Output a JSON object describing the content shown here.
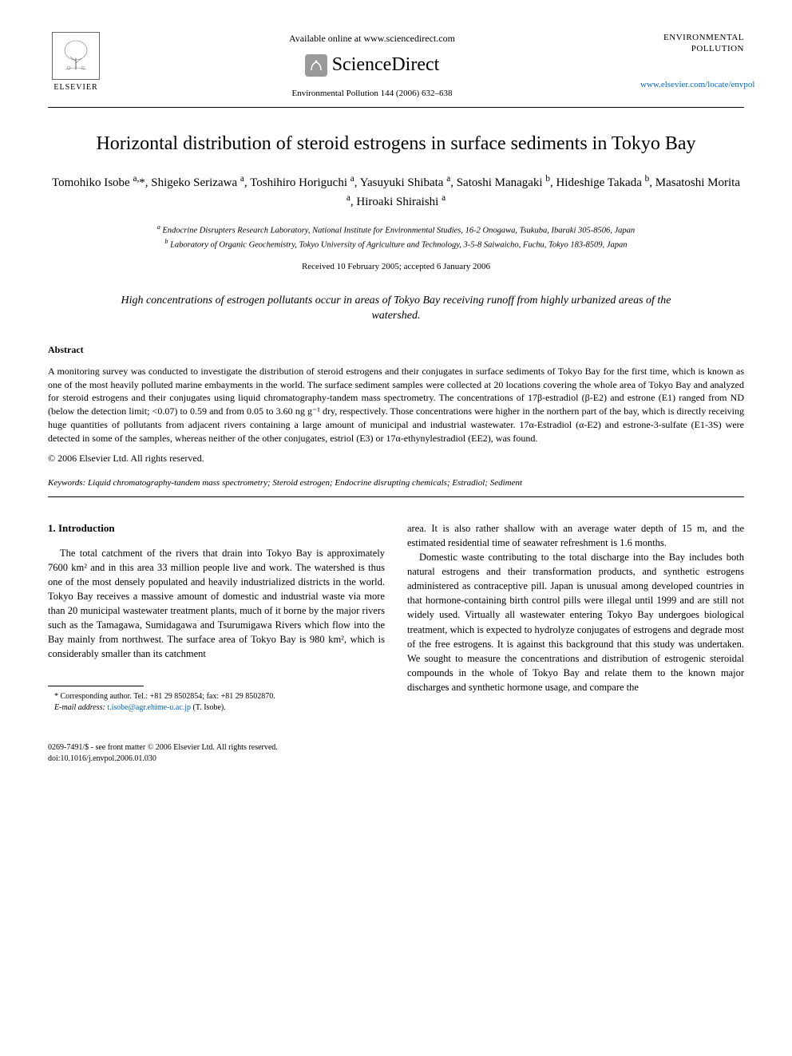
{
  "header": {
    "available_online": "Available online at www.sciencedirect.com",
    "sciencedirect": "ScienceDirect",
    "journal_ref": "Environmental Pollution 144 (2006) 632–638",
    "publisher": "ELSEVIER",
    "journal_name_1": "ENVIRONMENTAL",
    "journal_name_2": "POLLUTION",
    "journal_url": "www.elsevier.com/locate/envpol"
  },
  "title": "Horizontal distribution of steroid estrogens in surface sediments in Tokyo Bay",
  "authors_html": "Tomohiko Isobe <sup>a,</sup>*, Shigeko Serizawa <sup>a</sup>, Toshihiro Horiguchi <sup>a</sup>, Yasuyuki Shibata <sup>a</sup>, Satoshi Managaki <sup>b</sup>, Hideshige Takada <sup>b</sup>, Masatoshi Morita <sup>a</sup>, Hiroaki Shiraishi <sup>a</sup>",
  "affiliations": {
    "a": "Endocrine Disrupters Research Laboratory, National Institute for Environmental Studies, 16-2 Onogawa, Tsukuba, Ibaraki 305-8506, Japan",
    "b": "Laboratory of Organic Geochemistry, Tokyo University of Agriculture and Technology, 3-5-8 Saiwaicho, Fuchu, Tokyo 183-8509, Japan"
  },
  "dates": "Received 10 February 2005; accepted 6 January 2006",
  "capsule": "High concentrations of estrogen pollutants occur in areas of Tokyo Bay receiving runoff from highly urbanized areas of the watershed.",
  "abstract": {
    "heading": "Abstract",
    "text": "A monitoring survey was conducted to investigate the distribution of steroid estrogens and their conjugates in surface sediments of Tokyo Bay for the first time, which is known as one of the most heavily polluted marine embayments in the world. The surface sediment samples were collected at 20 locations covering the whole area of Tokyo Bay and analyzed for steroid estrogens and their conjugates using liquid chromatography-tandem mass spectrometry. The concentrations of 17β-estradiol (β-E2) and estrone (E1) ranged from ND (below the detection limit; <0.07) to 0.59 and from 0.05 to 3.60 ng g⁻¹ dry, respectively. Those concentrations were higher in the northern part of the bay, which is directly receiving huge quantities of pollutants from adjacent rivers containing a large amount of municipal and industrial wastewater. 17α-Estradiol (α-E2) and estrone-3-sulfate (E1-3S) were detected in some of the samples, whereas neither of the other conjugates, estriol (E3) or 17α-ethynylestradiol (EE2), was found.",
    "copyright": "© 2006 Elsevier Ltd. All rights reserved."
  },
  "keywords": {
    "label": "Keywords:",
    "text": "Liquid chromatography-tandem mass spectrometry; Steroid estrogen; Endocrine disrupting chemicals; Estradiol; Sediment"
  },
  "introduction": {
    "heading": "1. Introduction",
    "col1_p1": "The total catchment of the rivers that drain into Tokyo Bay is approximately 7600 km² and in this area 33 million people live and work. The watershed is thus one of the most densely populated and heavily industrialized districts in the world. Tokyo Bay receives a massive amount of domestic and industrial waste via more than 20 municipal wastewater treatment plants, much of it borne by the major rivers such as the Tamagawa, Sumidagawa and Tsurumigawa Rivers which flow into the Bay mainly from northwest. The surface area of Tokyo Bay is 980 km², which is considerably smaller than its catchment",
    "col2_p1": "area. It is also rather shallow with an average water depth of 15 m, and the estimated residential time of seawater refreshment is 1.6 months.",
    "col2_p2": "Domestic waste contributing to the total discharge into the Bay includes both natural estrogens and their transformation products, and synthetic estrogens administered as contraceptive pill. Japan is unusual among developed countries in that hormone-containing birth control pills were illegal until 1999 and are still not widely used. Virtually all wastewater entering Tokyo Bay undergoes biological treatment, which is expected to hydrolyze conjugates of estrogens and degrade most of the free estrogens. It is against this background that this study was undertaken. We sought to measure the concentrations and distribution of estrogenic steroidal compounds in the whole of Tokyo Bay and relate them to the known major discharges and synthetic hormone usage, and compare the"
  },
  "footnote": {
    "corr": "* Corresponding author. Tel.: +81 29 8502854; fax: +81 29 8502870.",
    "email_label": "E-mail address:",
    "email": "t.isobe@agr.ehime-u.ac.jp",
    "email_suffix": "(T. Isobe)."
  },
  "footer": {
    "issn": "0269-7491/$ - see front matter © 2006 Elsevier Ltd. All rights reserved.",
    "doi": "doi:10.1016/j.envpol.2006.01.030"
  },
  "colors": {
    "link": "#0066cc",
    "text": "#000000",
    "background": "#ffffff"
  }
}
